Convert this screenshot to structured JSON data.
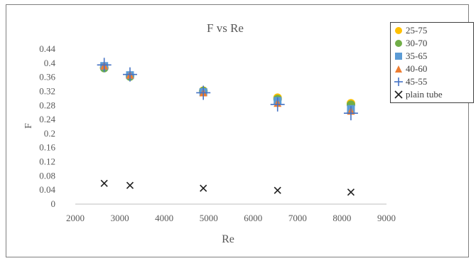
{
  "chart_data": {
    "type": "scatter",
    "title": "F vs Re",
    "xlabel": "Re",
    "ylabel": "F",
    "xlim": [
      2000,
      9000
    ],
    "ylim": [
      0,
      0.44
    ],
    "xticks": [
      "2000",
      "3000",
      "4000",
      "5000",
      "6000",
      "7000",
      "8000",
      "9000"
    ],
    "yticks": [
      "0",
      "0.04",
      "0.08",
      "0.12",
      "0.16",
      "0.2",
      "0.24",
      "0.28",
      "0.32",
      "0.36",
      "0.4",
      "0.44"
    ],
    "grid": false,
    "legend_position": "top-right",
    "series": [
      {
        "name": "25-75",
        "marker": "circle",
        "color": "#ffc000",
        "x": [
          2650,
          3230,
          4880,
          6550,
          8200
        ],
        "y": [
          0.388,
          0.364,
          0.322,
          0.302,
          0.286
        ]
      },
      {
        "name": "30-70",
        "marker": "circle",
        "color": "#70ad47",
        "x": [
          2650,
          3230,
          4880,
          6550,
          8200
        ],
        "y": [
          0.386,
          0.362,
          0.321,
          0.298,
          0.282
        ]
      },
      {
        "name": "35-65",
        "marker": "square",
        "color": "#5b9bd5",
        "x": [
          2650,
          3230,
          4880,
          6550,
          8200
        ],
        "y": [
          0.392,
          0.366,
          0.318,
          0.293,
          0.27
        ]
      },
      {
        "name": "40-60",
        "marker": "triangle",
        "color": "#ed7d31",
        "x": [
          2650,
          3230,
          4880,
          6550,
          8200
        ],
        "y": [
          0.393,
          0.367,
          0.317,
          0.287,
          0.265
        ]
      },
      {
        "name": "45-55",
        "marker": "plus",
        "color": "#4472c4",
        "x": [
          2650,
          3230,
          4880,
          6550,
          8200
        ],
        "y": [
          0.395,
          0.368,
          0.316,
          0.283,
          0.258
        ]
      },
      {
        "name": "plain tube",
        "marker": "x",
        "color": "#1f1f1f",
        "x": [
          2650,
          3230,
          4880,
          6550,
          8200
        ],
        "y": [
          0.059,
          0.053,
          0.045,
          0.039,
          0.034
        ]
      }
    ]
  }
}
